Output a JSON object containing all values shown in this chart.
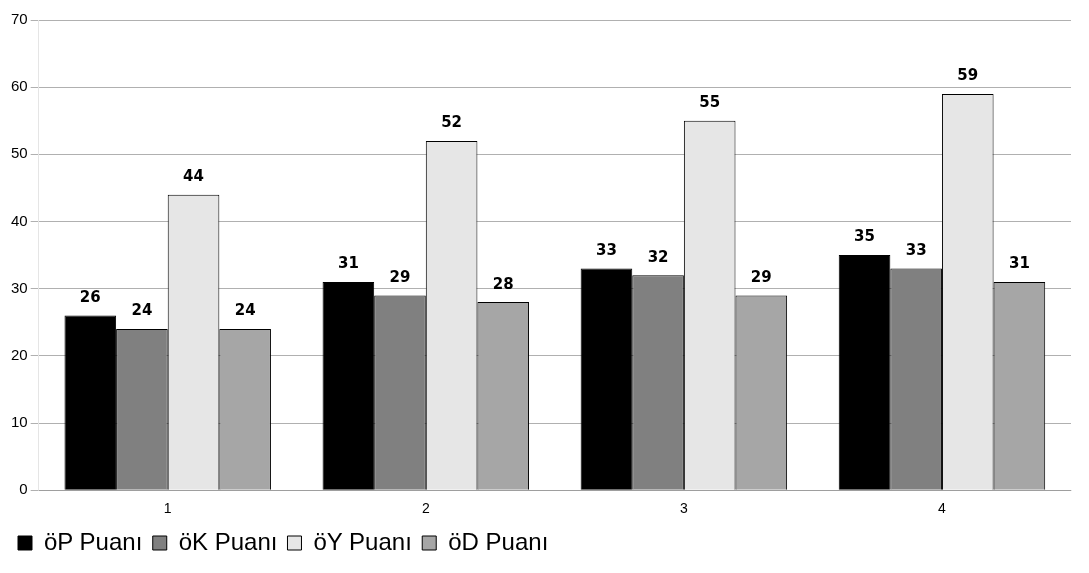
{
  "chart_data": {
    "type": "bar",
    "categories": [
      "1",
      "2",
      "3",
      "4"
    ],
    "series": [
      {
        "name": "öP Puanı",
        "color": "#000000",
        "values": [
          26,
          31,
          33,
          35
        ]
      },
      {
        "name": "öK Puanı",
        "color": "#808080",
        "values": [
          24,
          29,
          32,
          33
        ]
      },
      {
        "name": "öY Puanı",
        "color": "#e6e6e6",
        "values": [
          44,
          52,
          55,
          59
        ]
      },
      {
        "name": "öD Puanı",
        "color": "#a6a6a6",
        "values": [
          24,
          28,
          29,
          31
        ]
      }
    ],
    "ylim": [
      0,
      70
    ],
    "yticks": [
      0,
      10,
      20,
      30,
      40,
      50,
      60,
      70
    ],
    "grid": "y",
    "legend": "bottom left",
    "data_labels": true
  }
}
